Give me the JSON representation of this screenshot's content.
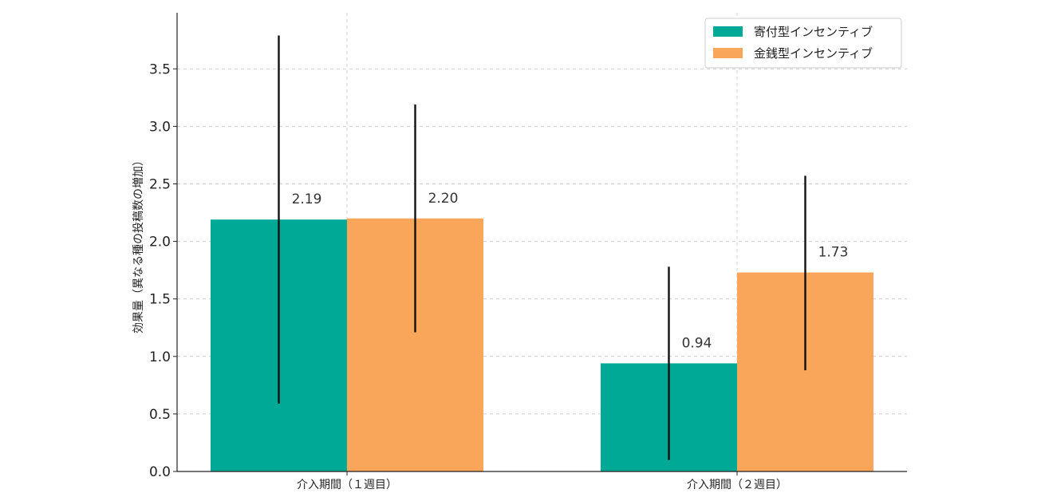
{
  "chart_data": {
    "type": "bar",
    "categories": [
      "介入期間（１週目）",
      "介入期間（２週目）"
    ],
    "series": [
      {
        "name": "寄付型インセンティブ",
        "values": [
          2.19,
          0.94
        ],
        "error_low": [
          0.59,
          0.1
        ],
        "error_high": [
          3.79,
          1.78
        ],
        "color": "#00a896",
        "labels": [
          "2.19",
          "0.94"
        ]
      },
      {
        "name": "金銭型インセンティブ",
        "values": [
          2.2,
          1.73
        ],
        "error_low": [
          1.21,
          0.88
        ],
        "error_high": [
          3.19,
          2.57
        ],
        "color": "#f9a65a",
        "labels": [
          "2.20",
          "1.73"
        ]
      }
    ],
    "ylabel": "効果量（異なる種の投稿数の増加）",
    "xlabel": "",
    "ylim": [
      0,
      4.0
    ],
    "yticks": [
      0.0,
      0.5,
      1.0,
      1.5,
      2.0,
      2.5,
      3.0,
      3.5
    ],
    "ytick_labels": [
      "0.0",
      "0.5",
      "1.0",
      "1.5",
      "2.0",
      "2.5",
      "3.0",
      "3.5"
    ],
    "grid": true,
    "legend_position": "top-right",
    "error_bar_color": "#111111"
  }
}
